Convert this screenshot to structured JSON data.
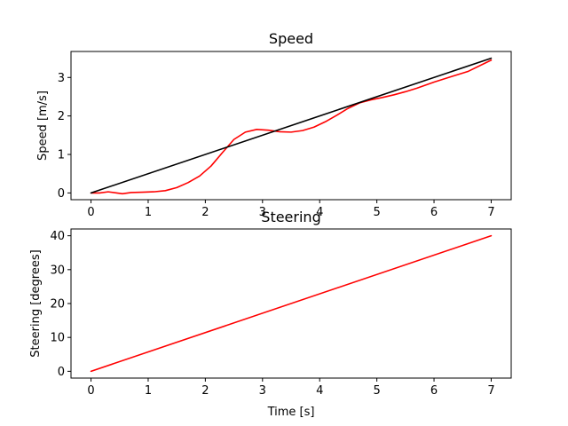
{
  "chart_data": [
    {
      "type": "line",
      "title": "Speed",
      "xlabel": "",
      "ylabel": "Speed [m/s]",
      "xlim": [
        -0.35,
        7.35
      ],
      "ylim": [
        -0.175,
        3.675
      ],
      "xticks": [
        0,
        1,
        2,
        3,
        4,
        5,
        6,
        7
      ],
      "yticks": [
        0,
        1,
        2,
        3
      ],
      "grid": false,
      "series": [
        {
          "color": "#ff0000",
          "x": [
            0,
            0.15,
            0.3,
            0.45,
            0.55,
            0.7,
            0.9,
            1.1,
            1.3,
            1.5,
            1.7,
            1.9,
            2.1,
            2.3,
            2.5,
            2.7,
            2.9,
            3.1,
            3.3,
            3.5,
            3.7,
            3.9,
            4.1,
            4.3,
            4.5,
            4.7,
            4.9,
            5.1,
            5.3,
            5.5,
            5.7,
            6.0,
            6.3,
            6.6,
            7.0
          ],
          "y": [
            0.0,
            0.0,
            0.03,
            0.0,
            -0.02,
            0.01,
            0.02,
            0.03,
            0.06,
            0.14,
            0.27,
            0.44,
            0.7,
            1.05,
            1.39,
            1.58,
            1.65,
            1.63,
            1.59,
            1.58,
            1.62,
            1.71,
            1.85,
            2.02,
            2.2,
            2.34,
            2.42,
            2.48,
            2.55,
            2.63,
            2.72,
            2.88,
            3.02,
            3.16,
            3.45
          ]
        },
        {
          "color": "#000000",
          "x": [
            0,
            7
          ],
          "y": [
            0,
            3.5
          ]
        }
      ]
    },
    {
      "type": "line",
      "title": "Steering",
      "xlabel": "Time [s]",
      "ylabel": "Steering [degrees]",
      "xlim": [
        -0.35,
        7.35
      ],
      "ylim": [
        -2,
        42
      ],
      "xticks": [
        0,
        1,
        2,
        3,
        4,
        5,
        6,
        7
      ],
      "yticks": [
        0,
        10,
        20,
        30,
        40
      ],
      "grid": false,
      "series": [
        {
          "color": "#ff0000",
          "x": [
            0,
            7
          ],
          "y": [
            0,
            40
          ]
        }
      ]
    }
  ]
}
